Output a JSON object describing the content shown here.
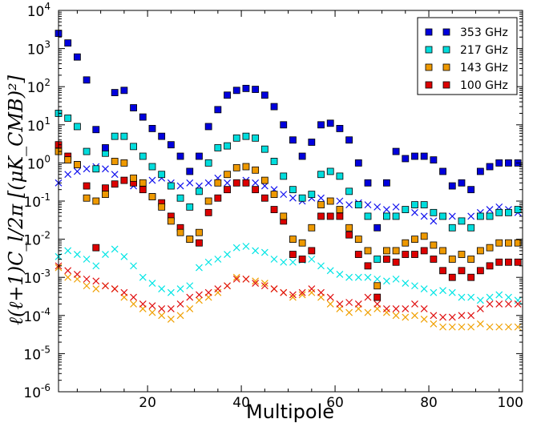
{
  "chart_data": {
    "type": "scatter",
    "title": "",
    "xlabel": "Multipole",
    "ylabel": "ℓ(ℓ+1)C_l/2π [(μK_CMB)²]",
    "xlim": [
      1,
      100
    ],
    "ylim": [
      1e-06,
      10000.0
    ],
    "yscale": "log",
    "x_ticks": [
      20,
      40,
      60,
      80,
      100
    ],
    "y_tick_exponents": [
      -6,
      -5,
      -4,
      -3,
      -2,
      -1,
      0,
      1,
      2,
      3,
      4
    ],
    "x_tick_labels": [
      "20",
      "40",
      "60",
      "80",
      "100"
    ],
    "y_tick_base": "10",
    "y_tick_exps": [
      "-6",
      "-5",
      "-4",
      "-3",
      "-2",
      "-1",
      "0",
      "1",
      "2",
      "3",
      "4"
    ],
    "x_minor_step": 5,
    "grid": false,
    "legend_position": "upper-right",
    "x": [
      1,
      3,
      5,
      7,
      9,
      11,
      13,
      15,
      17,
      19,
      21,
      23,
      25,
      27,
      29,
      31,
      33,
      35,
      37,
      39,
      41,
      43,
      45,
      47,
      49,
      51,
      53,
      55,
      57,
      59,
      61,
      63,
      65,
      67,
      69,
      71,
      73,
      75,
      77,
      79,
      81,
      83,
      85,
      87,
      89,
      91,
      93,
      95,
      97,
      99
    ],
    "series": [
      {
        "name": "353 GHz",
        "marker": "square",
        "color": "#0000dd",
        "values": [
          2500,
          1400,
          600,
          150,
          7.5,
          2.5,
          70,
          80,
          28,
          16,
          8,
          5,
          3,
          1.5,
          0.6,
          1.5,
          9,
          25,
          60,
          80,
          90,
          85,
          60,
          30,
          10,
          4,
          1.5,
          3.5,
          10,
          11,
          8,
          4,
          1,
          0.3,
          0.02,
          0.3,
          2,
          1.3,
          1.5,
          1.5,
          1.2,
          0.6,
          0.25,
          0.3,
          0.2,
          0.6,
          0.8,
          1,
          1,
          1
        ]
      },
      {
        "name": "217 GHz",
        "marker": "square",
        "color": "#00dddd",
        "values": [
          20,
          15,
          9,
          2,
          0.7,
          1.8,
          5,
          5,
          2.7,
          1.5,
          0.8,
          0.5,
          0.25,
          0.12,
          0.07,
          0.18,
          1,
          2.5,
          2.8,
          4.5,
          5,
          4.5,
          2.3,
          1.1,
          0.45,
          0.2,
          0.12,
          0.15,
          0.5,
          0.6,
          0.45,
          0.18,
          0.08,
          0.04,
          0.003,
          0.04,
          0.04,
          0.06,
          0.08,
          0.08,
          0.05,
          0.04,
          0.02,
          0.03,
          0.02,
          0.04,
          0.04,
          0.05,
          0.05,
          0.06
        ]
      },
      {
        "name": "143 GHz",
        "marker": "square",
        "color": "#ee9900",
        "values": [
          2,
          1.2,
          0.9,
          0.12,
          0.1,
          0.15,
          1.1,
          1,
          0.4,
          0.3,
          0.13,
          0.07,
          0.03,
          0.015,
          0.01,
          0.015,
          0.1,
          0.3,
          0.5,
          0.75,
          0.8,
          0.65,
          0.35,
          0.15,
          0.04,
          0.01,
          0.008,
          0.02,
          0.08,
          0.1,
          0.06,
          0.02,
          0.01,
          0.005,
          0.0006,
          0.005,
          0.005,
          0.008,
          0.01,
          0.012,
          0.007,
          0.005,
          0.003,
          0.004,
          0.003,
          0.005,
          0.006,
          0.008,
          0.008,
          0.008
        ]
      },
      {
        "name": "100 GHz",
        "marker": "square",
        "color": "#dd0000",
        "values": [
          3,
          1.5,
          0.9,
          0.25,
          0.006,
          0.22,
          0.28,
          0.35,
          0.3,
          0.2,
          0.13,
          0.09,
          0.04,
          0.02,
          0.01,
          0.008,
          0.05,
          0.12,
          0.2,
          0.3,
          0.3,
          0.2,
          0.12,
          0.06,
          0.03,
          0.004,
          0.003,
          0.005,
          0.04,
          0.04,
          0.04,
          0.013,
          0.004,
          0.002,
          0.0003,
          0.003,
          0.0025,
          0.004,
          0.004,
          0.005,
          0.003,
          0.0015,
          0.001,
          0.0015,
          0.001,
          0.0015,
          0.002,
          0.0025,
          0.0025,
          0.0025
        ]
      },
      {
        "marker": "x",
        "color": "#1111ee",
        "values": [
          0.3,
          0.5,
          0.6,
          0.7,
          0.8,
          0.7,
          0.5,
          0.35,
          0.25,
          0.3,
          0.35,
          0.4,
          0.3,
          0.25,
          0.3,
          0.25,
          0.3,
          0.4,
          0.3,
          0.3,
          0.35,
          0.3,
          0.25,
          0.2,
          0.15,
          0.12,
          0.1,
          0.12,
          0.12,
          0.1,
          0.1,
          0.08,
          0.09,
          0.08,
          0.07,
          0.06,
          0.07,
          0.06,
          0.05,
          0.04,
          0.03,
          0.04,
          0.04,
          0.03,
          0.04,
          0.05,
          0.06,
          0.07,
          0.06,
          0.05
        ]
      },
      {
        "marker": "x",
        "color": "#00e5e5",
        "values": [
          0.0035,
          0.005,
          0.004,
          0.003,
          0.002,
          0.004,
          0.0055,
          0.0035,
          0.002,
          0.001,
          0.0007,
          0.0005,
          0.0004,
          0.0005,
          0.0006,
          0.0018,
          0.0025,
          0.003,
          0.004,
          0.006,
          0.0065,
          0.005,
          0.0045,
          0.003,
          0.0025,
          0.0025,
          0.0028,
          0.003,
          0.002,
          0.0015,
          0.0012,
          0.001,
          0.001,
          0.001,
          0.0009,
          0.0008,
          0.0009,
          0.0007,
          0.0006,
          0.0005,
          0.0004,
          0.00045,
          0.0004,
          0.0003,
          0.0003,
          0.00025,
          0.0003,
          0.00035,
          0.0003,
          0.00025
        ]
      },
      {
        "marker": "x",
        "color": "#f0a000",
        "values": [
          0.0018,
          0.001,
          0.0009,
          0.0006,
          0.0005,
          0.0006,
          0.0005,
          0.0003,
          0.0002,
          0.00015,
          0.00012,
          0.0001,
          8e-05,
          0.0001,
          0.00015,
          0.00025,
          0.0003,
          0.0004,
          0.0006,
          0.001,
          0.0009,
          0.0008,
          0.0007,
          0.0005,
          0.0004,
          0.0003,
          0.00035,
          0.0004,
          0.0003,
          0.0002,
          0.00015,
          0.00012,
          0.00015,
          0.00012,
          0.00015,
          0.00012,
          0.0001,
          9e-05,
          0.0001,
          8e-05,
          6e-05,
          5e-05,
          5e-05,
          5e-05,
          5e-05,
          6e-05,
          5e-05,
          5e-05,
          5e-05,
          5e-05
        ]
      },
      {
        "marker": "x",
        "color": "#e01010",
        "values": [
          0.002,
          0.0015,
          0.0012,
          0.0009,
          0.0008,
          0.0006,
          0.0005,
          0.0004,
          0.0003,
          0.0002,
          0.00018,
          0.00015,
          0.00015,
          0.0002,
          0.0003,
          0.00035,
          0.0004,
          0.0005,
          0.0006,
          0.0009,
          0.0009,
          0.0007,
          0.0006,
          0.0005,
          0.0004,
          0.00035,
          0.0004,
          0.0005,
          0.0004,
          0.0003,
          0.0002,
          0.00022,
          0.0002,
          0.0003,
          0.0002,
          0.00015,
          0.00015,
          0.00015,
          0.0002,
          0.00015,
          0.0001,
          9e-05,
          9e-05,
          0.0001,
          0.0001,
          0.00015,
          0.0002,
          0.0002,
          0.0002,
          0.0002
        ]
      }
    ]
  }
}
